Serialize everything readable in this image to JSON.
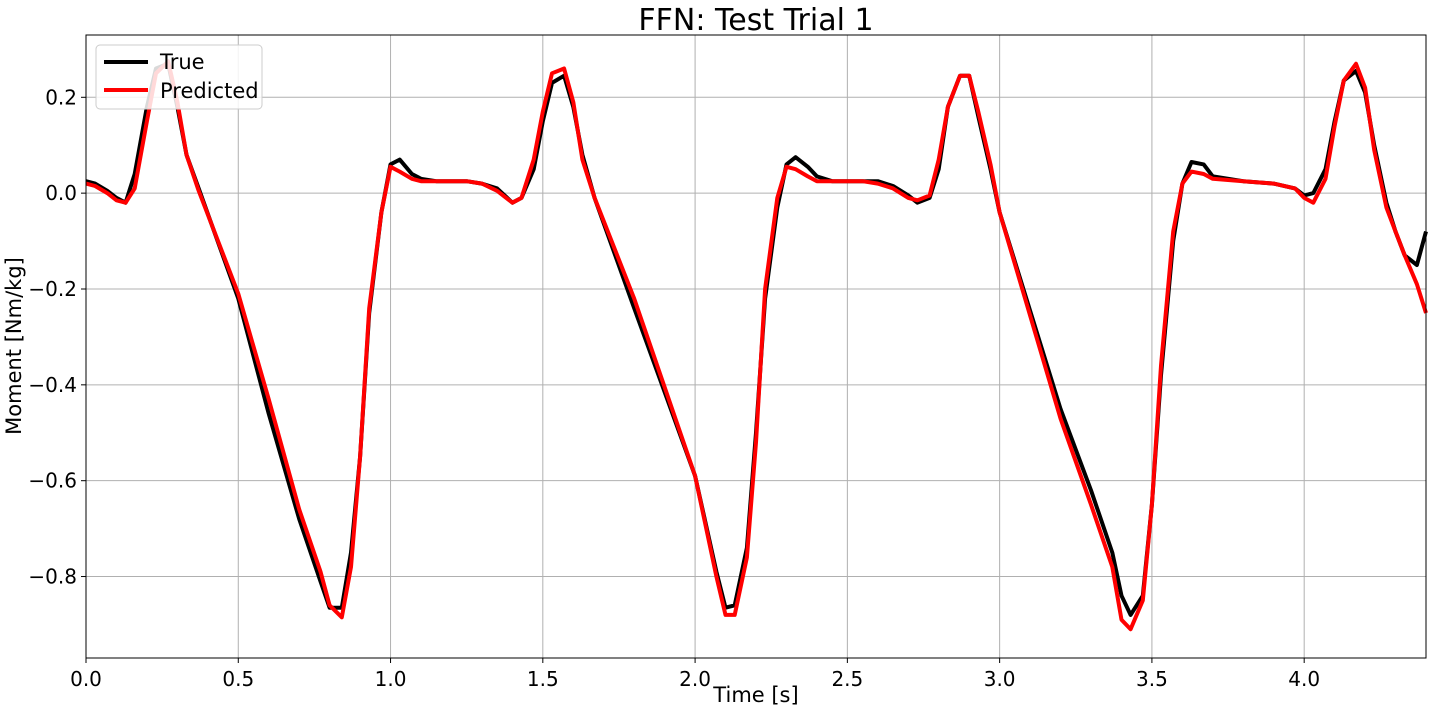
{
  "chart_data": {
    "type": "line",
    "title": "FFN: Test Trial 1",
    "xlabel": "Time [s]",
    "ylabel": "Moment [Nm/kg]",
    "xlim": [
      0.0,
      4.4
    ],
    "ylim": [
      -0.97,
      0.33
    ],
    "xticks": [
      0.0,
      0.5,
      1.0,
      1.5,
      2.0,
      2.5,
      3.0,
      3.5,
      4.0
    ],
    "xtick_labels": [
      "0.0",
      "0.5",
      "1.0",
      "1.5",
      "2.0",
      "2.5",
      "3.0",
      "3.5",
      "4.0"
    ],
    "yticks": [
      0.2,
      0.0,
      -0.2,
      -0.4,
      -0.6,
      -0.8
    ],
    "ytick_labels": [
      "0.2",
      "0.0",
      "−0.2",
      "−0.4",
      "−0.6",
      "−0.8"
    ],
    "grid": true,
    "legend_position": "top-left",
    "series": [
      {
        "name": "True",
        "color": "#000000",
        "x": [
          0.0,
          0.03,
          0.07,
          0.1,
          0.13,
          0.16,
          0.2,
          0.23,
          0.27,
          0.3,
          0.33,
          0.37,
          0.5,
          0.6,
          0.7,
          0.77,
          0.8,
          0.84,
          0.87,
          0.9,
          0.93,
          0.97,
          1.0,
          1.03,
          1.07,
          1.1,
          1.15,
          1.2,
          1.25,
          1.3,
          1.35,
          1.4,
          1.43,
          1.47,
          1.5,
          1.53,
          1.57,
          1.6,
          1.63,
          1.67,
          1.8,
          2.0,
          2.07,
          2.1,
          2.13,
          2.17,
          2.2,
          2.23,
          2.27,
          2.3,
          2.33,
          2.37,
          2.4,
          2.45,
          2.5,
          2.55,
          2.6,
          2.65,
          2.7,
          2.73,
          2.77,
          2.8,
          2.83,
          2.87,
          2.9,
          2.93,
          2.97,
          3.0,
          3.2,
          3.3,
          3.37,
          3.4,
          3.43,
          3.47,
          3.5,
          3.53,
          3.57,
          3.6,
          3.63,
          3.67,
          3.7,
          3.8,
          3.9,
          3.97,
          4.0,
          4.03,
          4.07,
          4.1,
          4.13,
          4.17,
          4.2,
          4.23,
          4.27,
          4.3,
          4.33,
          4.37,
          4.4
        ],
        "y": [
          0.025,
          0.02,
          0.005,
          -0.01,
          -0.02,
          0.04,
          0.18,
          0.26,
          0.27,
          0.18,
          0.08,
          0.01,
          -0.22,
          -0.46,
          -0.68,
          -0.81,
          -0.865,
          -0.865,
          -0.75,
          -0.55,
          -0.25,
          -0.04,
          0.06,
          0.07,
          0.04,
          0.03,
          0.025,
          0.025,
          0.025,
          0.02,
          0.01,
          -0.02,
          -0.01,
          0.05,
          0.15,
          0.23,
          0.245,
          0.18,
          0.08,
          -0.01,
          -0.24,
          -0.59,
          -0.79,
          -0.865,
          -0.86,
          -0.74,
          -0.5,
          -0.22,
          -0.03,
          0.06,
          0.075,
          0.055,
          0.035,
          0.025,
          0.025,
          0.025,
          0.025,
          0.015,
          -0.005,
          -0.02,
          -0.01,
          0.05,
          0.18,
          0.245,
          0.245,
          0.16,
          0.05,
          -0.04,
          -0.45,
          -0.62,
          -0.75,
          -0.84,
          -0.88,
          -0.84,
          -0.65,
          -0.38,
          -0.1,
          0.02,
          0.065,
          0.06,
          0.035,
          0.025,
          0.02,
          0.01,
          -0.005,
          0.0,
          0.05,
          0.15,
          0.235,
          0.255,
          0.21,
          0.1,
          -0.02,
          -0.08,
          -0.13,
          -0.15,
          -0.08
        ]
      },
      {
        "name": "Predicted",
        "color": "#ff0000",
        "x": [
          0.0,
          0.03,
          0.07,
          0.1,
          0.13,
          0.16,
          0.2,
          0.23,
          0.27,
          0.3,
          0.33,
          0.37,
          0.5,
          0.6,
          0.7,
          0.77,
          0.8,
          0.84,
          0.87,
          0.9,
          0.93,
          0.97,
          1.0,
          1.03,
          1.07,
          1.1,
          1.15,
          1.2,
          1.25,
          1.3,
          1.35,
          1.4,
          1.43,
          1.47,
          1.5,
          1.53,
          1.57,
          1.6,
          1.63,
          1.67,
          1.8,
          2.0,
          2.07,
          2.1,
          2.13,
          2.17,
          2.2,
          2.23,
          2.27,
          2.3,
          2.33,
          2.37,
          2.4,
          2.45,
          2.5,
          2.55,
          2.6,
          2.65,
          2.7,
          2.73,
          2.77,
          2.8,
          2.83,
          2.87,
          2.9,
          2.93,
          2.97,
          3.0,
          3.2,
          3.3,
          3.37,
          3.4,
          3.43,
          3.47,
          3.5,
          3.53,
          3.57,
          3.6,
          3.63,
          3.67,
          3.7,
          3.8,
          3.9,
          3.97,
          4.0,
          4.03,
          4.07,
          4.1,
          4.13,
          4.17,
          4.2,
          4.23,
          4.27,
          4.3,
          4.33,
          4.37,
          4.4
        ],
        "y": [
          0.02,
          0.015,
          0.0,
          -0.015,
          -0.02,
          0.01,
          0.15,
          0.25,
          0.275,
          0.19,
          0.08,
          0.005,
          -0.21,
          -0.43,
          -0.66,
          -0.79,
          -0.86,
          -0.885,
          -0.78,
          -0.55,
          -0.24,
          -0.04,
          0.055,
          0.045,
          0.03,
          0.025,
          0.025,
          0.025,
          0.025,
          0.02,
          0.005,
          -0.02,
          -0.01,
          0.07,
          0.17,
          0.25,
          0.26,
          0.19,
          0.07,
          -0.01,
          -0.22,
          -0.59,
          -0.8,
          -0.88,
          -0.88,
          -0.76,
          -0.52,
          -0.2,
          -0.01,
          0.055,
          0.05,
          0.035,
          0.025,
          0.025,
          0.025,
          0.025,
          0.02,
          0.01,
          -0.01,
          -0.015,
          -0.005,
          0.07,
          0.18,
          0.245,
          0.245,
          0.17,
          0.06,
          -0.04,
          -0.47,
          -0.65,
          -0.78,
          -0.89,
          -0.91,
          -0.85,
          -0.65,
          -0.36,
          -0.08,
          0.02,
          0.045,
          0.04,
          0.03,
          0.025,
          0.02,
          0.01,
          -0.01,
          -0.02,
          0.03,
          0.14,
          0.235,
          0.27,
          0.22,
          0.09,
          -0.03,
          -0.08,
          -0.13,
          -0.19,
          -0.25
        ]
      }
    ]
  }
}
